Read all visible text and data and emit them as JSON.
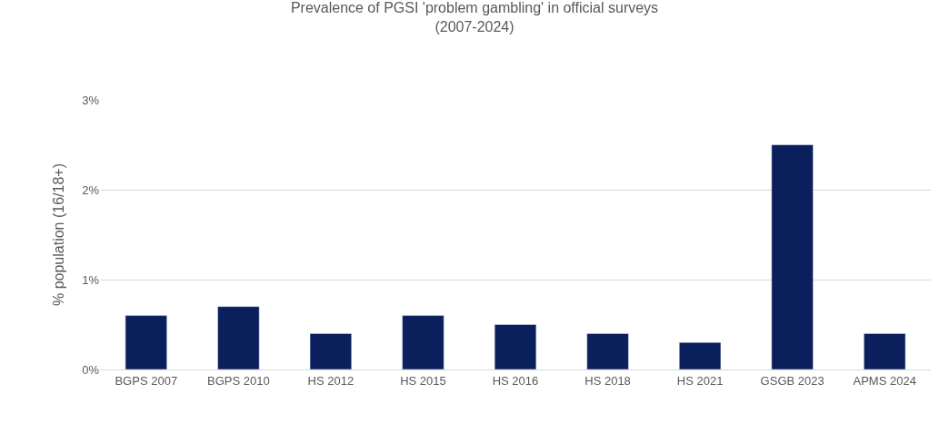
{
  "chart_data": {
    "type": "bar",
    "title": "Prevalence of PGSI 'problem gambling' in official surveys (2007-2024)",
    "ylabel": "% population (16/18+)",
    "categories": [
      "BGPS 2007",
      "BGPS 2010",
      "HS 2012",
      "HS 2015",
      "HS 2016",
      "HS 2018",
      "HS 2021",
      "GSGB 2023",
      "APMS 2024"
    ],
    "values": [
      0.6,
      0.7,
      0.4,
      0.6,
      0.5,
      0.4,
      0.3,
      2.5,
      0.4
    ],
    "color": "#0b1f5c",
    "ylim": [
      0,
      3
    ],
    "yticks": [
      {
        "value": 0,
        "label": "0%"
      },
      {
        "value": 1,
        "label": "1%"
      },
      {
        "value": 2,
        "label": "2%"
      },
      {
        "value": 3,
        "label": "3%"
      }
    ],
    "grid": "y",
    "legend": false
  }
}
